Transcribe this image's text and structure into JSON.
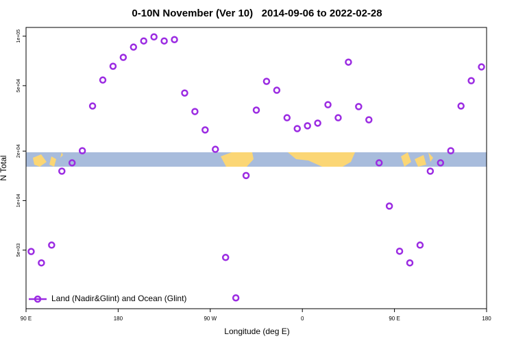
{
  "chart_data": {
    "type": "scatter",
    "title": "0-10N November (Ver 10)   2014-09-06 to 2022-02-28",
    "x_label": "Longitude (deg E)",
    "y_label": "N Total",
    "y_log": true,
    "legend": "bottom-left",
    "xlim": [
      90,
      540
    ],
    "xticks": [
      {
        "value": 90,
        "label": "90 E"
      },
      {
        "value": 180,
        "label": "180"
      },
      {
        "value": 270,
        "label": "90 W"
      },
      {
        "value": 360,
        "label": "0"
      },
      {
        "value": 450,
        "label": "90 E"
      },
      {
        "value": 540,
        "label": "180"
      }
    ],
    "ylim": [
      2200,
      113000
    ],
    "yticks": [
      {
        "value": 5000,
        "label": "5e+03"
      },
      {
        "value": 10000,
        "label": "1e+04"
      },
      {
        "value": 20000,
        "label": "2e+04"
      },
      {
        "value": 50000,
        "label": "5e+04"
      },
      {
        "value": 100000,
        "label": "1e+05"
      }
    ],
    "series": [
      {
        "name": "Land (Nadir&Glint) and Ocean (Glint)",
        "color": "#9b2be2",
        "x": [
          95,
          105,
          115,
          125,
          135,
          145,
          155,
          165,
          175,
          185,
          195,
          205,
          215,
          225,
          235,
          245,
          255,
          265,
          275,
          285,
          295,
          305,
          315,
          325,
          335,
          345,
          355,
          365,
          375,
          385,
          395,
          405,
          415,
          425,
          435,
          445,
          455,
          465,
          475,
          485,
          495,
          505,
          515,
          525,
          535
        ],
        "values": [
          4900,
          4180,
          5360,
          15100,
          16960,
          20100,
          37600,
          54100,
          65600,
          74300,
          85800,
          93500,
          99000,
          93500,
          95300,
          45100,
          34800,
          26900,
          20500,
          4510,
          2560,
          14200,
          35500,
          53100,
          46900,
          31900,
          27400,
          28500,
          29600,
          38300,
          31900,
          69500,
          37300,
          31000,
          16960,
          9260,
          4920,
          4180,
          5360,
          15100,
          16960,
          20100,
          37600,
          53600,
          65000
        ]
      }
    ]
  }
}
